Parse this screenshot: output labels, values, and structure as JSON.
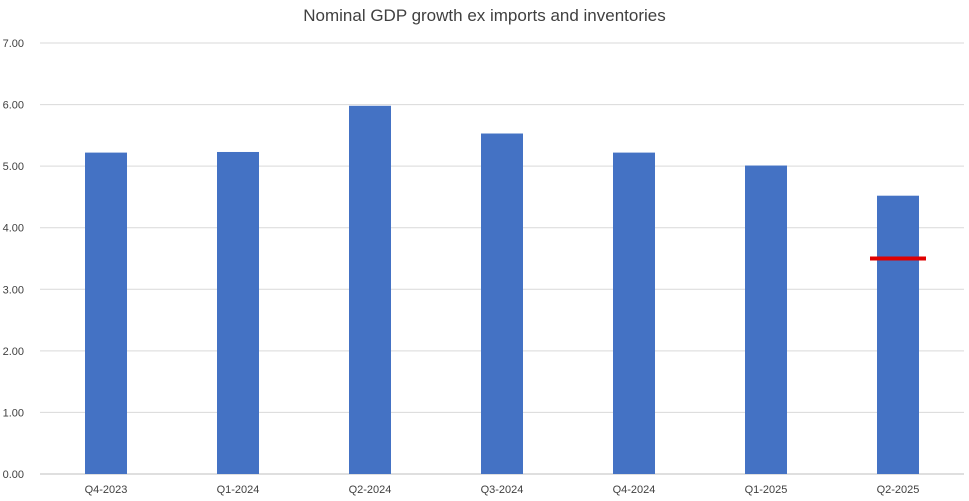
{
  "chart_data": {
    "type": "bar",
    "title": "Nominal GDP growth ex imports and inventories",
    "xlabel": "",
    "ylabel": "",
    "categories": [
      "Q4-2023",
      "Q1-2024",
      "Q2-2024",
      "Q3-2024",
      "Q4-2024",
      "Q1-2025",
      "Q2-2025"
    ],
    "values": [
      5.22,
      5.23,
      5.98,
      5.53,
      5.22,
      5.01,
      4.52
    ],
    "ylim": [
      0,
      7
    ],
    "yticks": [
      "0.00",
      "1.00",
      "2.00",
      "3.00",
      "4.00",
      "5.00",
      "6.00",
      "7.00"
    ],
    "grid": true,
    "bar_color": "#4472C4",
    "marker": {
      "category": "Q2-2025",
      "value": 3.5,
      "color": "#E00000"
    }
  }
}
